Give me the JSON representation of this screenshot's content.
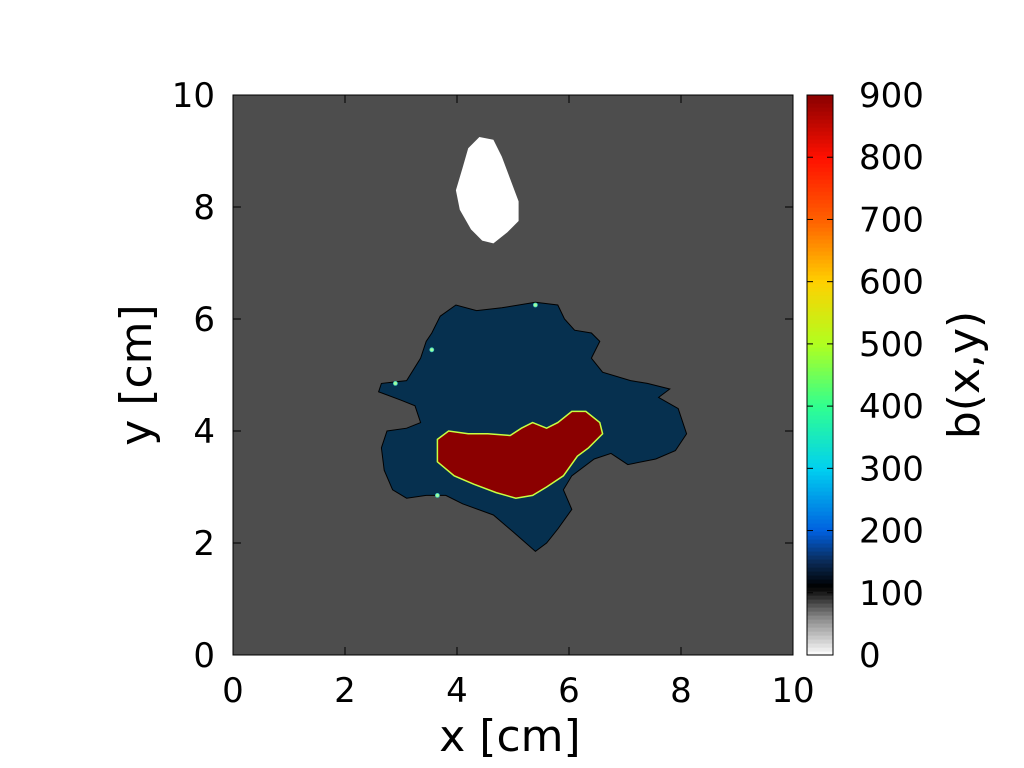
{
  "chart_data": {
    "type": "heatmap",
    "xlabel": "x [cm]",
    "ylabel": "y [cm]",
    "colorbar_label": "b(x,y)",
    "xlim": [
      0,
      10
    ],
    "ylim": [
      0,
      10
    ],
    "x_ticks": [
      0,
      2,
      4,
      6,
      8,
      10
    ],
    "y_ticks": [
      0,
      2,
      4,
      6,
      8,
      10
    ],
    "x_tick_labels": [
      "0",
      "2",
      "4",
      "6",
      "8",
      "10"
    ],
    "y_tick_labels": [
      "0",
      "2",
      "4",
      "6",
      "8",
      "10"
    ],
    "colorbar_range": [
      0,
      900
    ],
    "colorbar_ticks": [
      0,
      100,
      200,
      300,
      400,
      500,
      600,
      700,
      800,
      900
    ],
    "colorbar_tick_labels": [
      "0",
      "100",
      "200",
      "300",
      "400",
      "500",
      "600",
      "700",
      "800",
      "900"
    ],
    "colormap_stops": [
      {
        "value": 0,
        "color": "#ffffff"
      },
      {
        "value": 60,
        "color": "#8a8a8a"
      },
      {
        "value": 110,
        "color": "#000000"
      },
      {
        "value": 150,
        "color": "#0a2a55"
      },
      {
        "value": 200,
        "color": "#0060e0"
      },
      {
        "value": 300,
        "color": "#00d0f0"
      },
      {
        "value": 400,
        "color": "#30ff90"
      },
      {
        "value": 500,
        "color": "#b0ff20"
      },
      {
        "value": 600,
        "color": "#ffd000"
      },
      {
        "value": 700,
        "color": "#ff6000"
      },
      {
        "value": 800,
        "color": "#ff1000"
      },
      {
        "value": 900,
        "color": "#8a0000"
      }
    ],
    "regions": [
      {
        "name": "background",
        "value": 70,
        "color": "#4d4d4d"
      },
      {
        "name": "low-value-blob",
        "value": 0,
        "color": "#ffffff",
        "boundary": [
          [
            4.4,
            9.25
          ],
          [
            4.65,
            9.2
          ],
          [
            4.8,
            8.9
          ],
          [
            4.95,
            8.5
          ],
          [
            5.1,
            8.1
          ],
          [
            5.1,
            7.75
          ],
          [
            4.9,
            7.55
          ],
          [
            4.65,
            7.35
          ],
          [
            4.45,
            7.4
          ],
          [
            4.25,
            7.6
          ],
          [
            4.05,
            7.95
          ],
          [
            3.98,
            8.3
          ],
          [
            4.1,
            8.7
          ],
          [
            4.2,
            9.05
          ]
        ]
      },
      {
        "name": "mid-value-region",
        "value": 150,
        "color": "#06304f",
        "boundary": [
          [
            3.7,
            6.05
          ],
          [
            3.98,
            6.25
          ],
          [
            4.35,
            6.15
          ],
          [
            4.8,
            6.2
          ],
          [
            5.4,
            6.3
          ],
          [
            5.8,
            6.25
          ],
          [
            5.92,
            6.0
          ],
          [
            6.1,
            5.8
          ],
          [
            6.4,
            5.75
          ],
          [
            6.55,
            5.6
          ],
          [
            6.4,
            5.3
          ],
          [
            6.6,
            5.05
          ],
          [
            7.1,
            4.9
          ],
          [
            7.4,
            4.85
          ],
          [
            7.8,
            4.75
          ],
          [
            7.6,
            4.6
          ],
          [
            7.95,
            4.4
          ],
          [
            8.1,
            3.95
          ],
          [
            7.9,
            3.65
          ],
          [
            7.55,
            3.5
          ],
          [
            7.05,
            3.4
          ],
          [
            6.75,
            3.6
          ],
          [
            6.45,
            3.5
          ],
          [
            6.05,
            3.2
          ],
          [
            5.9,
            2.95
          ],
          [
            6.05,
            2.6
          ],
          [
            5.8,
            2.25
          ],
          [
            5.6,
            2.0
          ],
          [
            5.4,
            1.85
          ],
          [
            5.0,
            2.2
          ],
          [
            4.65,
            2.5
          ],
          [
            4.1,
            2.7
          ],
          [
            3.8,
            2.85
          ],
          [
            3.45,
            2.85
          ],
          [
            3.1,
            2.8
          ],
          [
            2.85,
            2.95
          ],
          [
            2.7,
            3.3
          ],
          [
            2.65,
            3.7
          ],
          [
            2.75,
            4.0
          ],
          [
            3.1,
            4.05
          ],
          [
            3.35,
            4.15
          ],
          [
            3.25,
            4.45
          ],
          [
            3.0,
            4.55
          ],
          [
            2.6,
            4.7
          ],
          [
            2.65,
            4.85
          ],
          [
            3.1,
            4.9
          ],
          [
            3.35,
            5.3
          ],
          [
            3.45,
            5.6
          ],
          [
            3.55,
            5.75
          ]
        ]
      },
      {
        "name": "high-value-region",
        "value": 880,
        "color": "#8b0000",
        "boundary": [
          [
            3.65,
            3.85
          ],
          [
            3.85,
            4.0
          ],
          [
            4.2,
            3.95
          ],
          [
            4.55,
            3.95
          ],
          [
            4.95,
            3.92
          ],
          [
            5.15,
            4.05
          ],
          [
            5.35,
            4.15
          ],
          [
            5.6,
            4.05
          ],
          [
            5.8,
            4.15
          ],
          [
            6.05,
            4.35
          ],
          [
            6.3,
            4.35
          ],
          [
            6.55,
            4.15
          ],
          [
            6.6,
            3.95
          ],
          [
            6.35,
            3.7
          ],
          [
            6.15,
            3.55
          ],
          [
            5.9,
            3.2
          ],
          [
            5.6,
            3.0
          ],
          [
            5.35,
            2.85
          ],
          [
            5.05,
            2.8
          ],
          [
            4.7,
            2.9
          ],
          [
            4.3,
            3.05
          ],
          [
            3.95,
            3.2
          ],
          [
            3.65,
            3.45
          ]
        ]
      }
    ],
    "isolated_points": [
      {
        "x": 5.4,
        "y": 6.25
      },
      {
        "x": 3.55,
        "y": 5.45
      },
      {
        "x": 2.9,
        "y": 4.85
      },
      {
        "x": 3.65,
        "y": 2.85
      }
    ],
    "grid": false
  }
}
